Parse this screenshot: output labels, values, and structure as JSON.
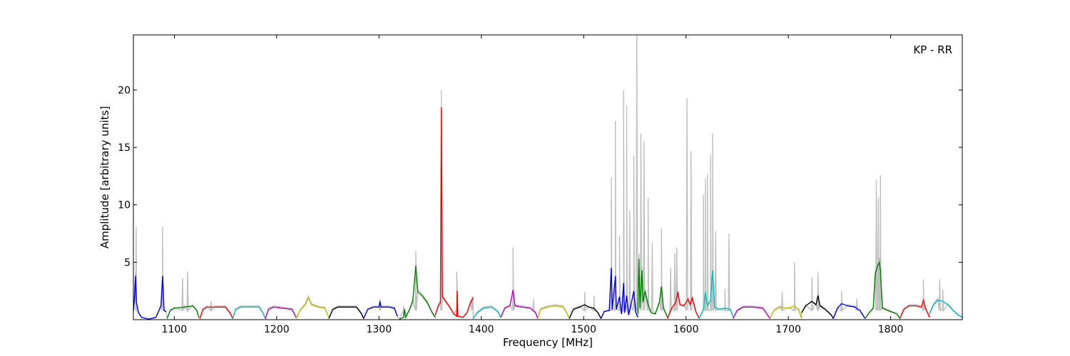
{
  "chart_data": {
    "type": "line",
    "xlabel": "Frequency [MHz]",
    "ylabel": "Amplitude [arbitrary units]",
    "annotation": "KP - RR",
    "xlim": [
      1060,
      1870
    ],
    "ylim": [
      0,
      24.8
    ],
    "xticks": [
      1100,
      1200,
      1300,
      1400,
      1500,
      1600,
      1700,
      1800
    ],
    "yticks": [
      5,
      10,
      15,
      20
    ],
    "grid": false,
    "raw_spikes": [
      [
        1062.7,
        8.1
      ],
      [
        1088.5,
        8.1
      ],
      [
        1108,
        3.6
      ],
      [
        1113,
        4.2
      ],
      [
        1136,
        1.6
      ],
      [
        1301,
        1.8
      ],
      [
        1324,
        1.2
      ],
      [
        1336,
        6.0
      ],
      [
        1361,
        19.5
      ],
      [
        1376,
        4.2
      ],
      [
        1391,
        2.0
      ],
      [
        1431,
        6.3
      ],
      [
        1451,
        1.8
      ],
      [
        1501,
        2.4
      ],
      [
        1510,
        2.1
      ],
      [
        1527,
        12.4
      ],
      [
        1531,
        17.3
      ],
      [
        1535,
        7.3
      ],
      [
        1539,
        20.0
      ],
      [
        1542,
        18.6
      ],
      [
        1545,
        9.5
      ],
      [
        1549,
        14.3
      ],
      [
        1552,
        24.8
      ],
      [
        1556,
        16.2
      ],
      [
        1559,
        15.5
      ],
      [
        1563,
        10.6
      ],
      [
        1567,
        6.7
      ],
      [
        1576,
        8.0
      ],
      [
        1585,
        4.5
      ],
      [
        1589,
        5.8
      ],
      [
        1591,
        6.3
      ],
      [
        1601,
        19.3
      ],
      [
        1605,
        14.7
      ],
      [
        1617,
        10.9
      ],
      [
        1619,
        12.3
      ],
      [
        1621,
        12.7
      ],
      [
        1624,
        14.4
      ],
      [
        1626,
        16.2
      ],
      [
        1629,
        7.7
      ],
      [
        1638,
        2.7
      ],
      [
        1642,
        7.5
      ],
      [
        1694,
        2.4
      ],
      [
        1706,
        5.0
      ],
      [
        1723,
        3.7
      ],
      [
        1729,
        4.1
      ],
      [
        1752,
        2.5
      ],
      [
        1767,
        1.8
      ],
      [
        1786,
        12.2
      ],
      [
        1788,
        10.6
      ],
      [
        1790,
        12.6
      ],
      [
        1832,
        3.5
      ],
      [
        1848,
        3.5
      ],
      [
        1851,
        2.6
      ]
    ],
    "series": [
      {
        "color": "#0000ff",
        "points": [
          [
            1060,
            0.7
          ],
          [
            1061,
            1.8
          ],
          [
            1062,
            3.8
          ],
          [
            1063,
            1.5
          ],
          [
            1065,
            0.6
          ],
          [
            1068,
            0.2
          ],
          [
            1075,
            0.05
          ],
          [
            1082,
            0.2
          ],
          [
            1087,
            1.2
          ],
          [
            1088.5,
            3.8
          ],
          [
            1090,
            0.8
          ],
          [
            1092,
            0.7
          ]
        ]
      },
      {
        "color": "#008000",
        "points": [
          [
            1093,
            0.1
          ],
          [
            1096,
            0.8
          ],
          [
            1100,
            1.0
          ],
          [
            1110,
            1.1
          ],
          [
            1118,
            1.2
          ],
          [
            1122,
            0.8
          ],
          [
            1124,
            0.2
          ]
        ]
      },
      {
        "color": "#ff0000",
        "points": [
          [
            1125,
            0.1
          ],
          [
            1128,
            0.9
          ],
          [
            1132,
            1.1
          ],
          [
            1140,
            1.1
          ],
          [
            1150,
            1.1
          ],
          [
            1155,
            0.5
          ],
          [
            1157,
            0.1
          ]
        ]
      },
      {
        "color": "#00bfbf",
        "points": [
          [
            1157,
            0.1
          ],
          [
            1160,
            0.9
          ],
          [
            1165,
            1.1
          ],
          [
            1175,
            1.1
          ],
          [
            1183,
            1.1
          ],
          [
            1187,
            0.5
          ],
          [
            1189,
            0.1
          ]
        ]
      },
      {
        "color": "#bf00bf",
        "points": [
          [
            1189,
            0.1
          ],
          [
            1192,
            0.9
          ],
          [
            1197,
            1.1
          ],
          [
            1206,
            1.0
          ],
          [
            1215,
            0.9
          ],
          [
            1219,
            0.2
          ]
        ]
      },
      {
        "color": "#bfbf00",
        "points": [
          [
            1219,
            0.1
          ],
          [
            1223,
            0.8
          ],
          [
            1228,
            1.3
          ],
          [
            1231,
            1.9
          ],
          [
            1234,
            1.3
          ],
          [
            1240,
            1.1
          ],
          [
            1247,
            1.0
          ],
          [
            1251,
            0.2
          ]
        ]
      },
      {
        "color": "#000000",
        "points": [
          [
            1251,
            0.1
          ],
          [
            1255,
            0.9
          ],
          [
            1260,
            1.1
          ],
          [
            1270,
            1.1
          ],
          [
            1278,
            1.1
          ],
          [
            1283,
            0.5
          ],
          [
            1285,
            0.1
          ]
        ]
      },
      {
        "color": "#0000ff",
        "points": [
          [
            1285,
            0.1
          ],
          [
            1289,
            0.9
          ],
          [
            1295,
            1.1
          ],
          [
            1300,
            1.1
          ],
          [
            1301,
            1.6
          ],
          [
            1302,
            1.1
          ],
          [
            1310,
            1.1
          ],
          [
            1315,
            1.0
          ],
          [
            1318,
            0.3
          ]
        ]
      },
      {
        "color": "#008000",
        "points": [
          [
            1320,
            0.05
          ],
          [
            1324,
            0.2
          ],
          [
            1325,
            0.9
          ],
          [
            1326,
            0.2
          ],
          [
            1330,
            0.9
          ],
          [
            1333,
            1.6
          ],
          [
            1336,
            4.7
          ],
          [
            1338,
            2.4
          ],
          [
            1342,
            2.1
          ],
          [
            1347,
            1.5
          ],
          [
            1352,
            0.6
          ],
          [
            1355,
            0.2
          ]
        ]
      },
      {
        "color": "#ff0000",
        "points": [
          [
            1355,
            0.4
          ],
          [
            1358,
            1.2
          ],
          [
            1360,
            1.5
          ],
          [
            1361,
            18.5
          ],
          [
            1362,
            2.0
          ],
          [
            1365,
            1.6
          ],
          [
            1369,
            1.1
          ],
          [
            1373,
            0.5
          ],
          [
            1376,
            0.3
          ],
          [
            1376.5,
            2.5
          ],
          [
            1377,
            0.3
          ],
          [
            1382,
            0.2
          ],
          [
            1386,
            0.6
          ],
          [
            1390,
            1.6
          ],
          [
            1392,
            1.9
          ]
        ]
      },
      {
        "color": "#00bfbf",
        "points": [
          [
            1392,
            0.1
          ],
          [
            1396,
            0.6
          ],
          [
            1402,
            1.0
          ],
          [
            1410,
            1.1
          ],
          [
            1416,
            0.7
          ],
          [
            1419,
            0.2
          ]
        ]
      },
      {
        "color": "#bf00bf",
        "points": [
          [
            1419,
            0.2
          ],
          [
            1423,
            1.0
          ],
          [
            1428,
            1.2
          ],
          [
            1431,
            2.6
          ],
          [
            1433,
            1.2
          ],
          [
            1440,
            1.1
          ],
          [
            1448,
            1.0
          ],
          [
            1453,
            0.6
          ],
          [
            1455,
            0.1
          ]
        ]
      },
      {
        "color": "#bfbf00",
        "points": [
          [
            1455,
            0.1
          ],
          [
            1458,
            0.9
          ],
          [
            1465,
            1.1
          ],
          [
            1472,
            1.2
          ],
          [
            1480,
            1.1
          ],
          [
            1484,
            0.5
          ],
          [
            1486,
            0.1
          ]
        ]
      },
      {
        "color": "#000000",
        "points": [
          [
            1486,
            0.1
          ],
          [
            1490,
            0.9
          ],
          [
            1496,
            1.1
          ],
          [
            1501,
            1.3
          ],
          [
            1505,
            1.1
          ],
          [
            1510,
            1.0
          ],
          [
            1514,
            0.6
          ],
          [
            1517,
            0.1
          ]
        ]
      },
      {
        "color": "#0000ff",
        "points": [
          [
            1517,
            0.1
          ],
          [
            1520,
            0.7
          ],
          [
            1525,
            0.8
          ],
          [
            1527,
            4.5
          ],
          [
            1528,
            0.9
          ],
          [
            1531,
            3.8
          ],
          [
            1532,
            0.9
          ],
          [
            1535,
            2.0
          ],
          [
            1537,
            0.5
          ],
          [
            1539,
            3.2
          ],
          [
            1540,
            0.6
          ],
          [
            1542,
            2.1
          ],
          [
            1544,
            0.4
          ],
          [
            1546,
            1.2
          ],
          [
            1549,
            2.5
          ],
          [
            1551,
            0.6
          ],
          [
            1553,
            0.2
          ]
        ]
      },
      {
        "color": "#008000",
        "points": [
          [
            1553,
            0.5
          ],
          [
            1554,
            5.3
          ],
          [
            1555,
            1.0
          ],
          [
            1557,
            4.3
          ],
          [
            1558,
            1.5
          ],
          [
            1560,
            2.5
          ],
          [
            1563,
            1.3
          ],
          [
            1566,
            0.6
          ],
          [
            1570,
            0.5
          ],
          [
            1574,
            1.5
          ],
          [
            1576,
            2.9
          ],
          [
            1578,
            1.0
          ],
          [
            1582,
            0.2
          ]
        ]
      },
      {
        "color": "#ff0000",
        "points": [
          [
            1582,
            0.1
          ],
          [
            1586,
            1.0
          ],
          [
            1590,
            1.5
          ],
          [
            1592,
            2.4
          ],
          [
            1594,
            1.3
          ],
          [
            1598,
            1.2
          ],
          [
            1602,
            1.8
          ],
          [
            1604,
            1.3
          ],
          [
            1606,
            1.9
          ],
          [
            1610,
            0.6
          ],
          [
            1613,
            0.1
          ]
        ]
      },
      {
        "color": "#00bfbf",
        "points": [
          [
            1613,
            0.1
          ],
          [
            1617,
            0.9
          ],
          [
            1619,
            2.4
          ],
          [
            1621,
            1.2
          ],
          [
            1624,
            1.7
          ],
          [
            1626,
            4.3
          ],
          [
            1628,
            1.1
          ],
          [
            1632,
            0.9
          ],
          [
            1638,
            1.0
          ],
          [
            1643,
            0.9
          ],
          [
            1646,
            0.3
          ]
        ]
      },
      {
        "color": "#bf00bf",
        "points": [
          [
            1646,
            0.1
          ],
          [
            1650,
            0.8
          ],
          [
            1656,
            1.1
          ],
          [
            1665,
            1.1
          ],
          [
            1675,
            1.0
          ],
          [
            1679,
            0.5
          ],
          [
            1682,
            0.1
          ]
        ]
      },
      {
        "color": "#bfbf00",
        "points": [
          [
            1682,
            0.1
          ],
          [
            1686,
            0.8
          ],
          [
            1692,
            1.1
          ],
          [
            1700,
            1.0
          ],
          [
            1706,
            1.2
          ],
          [
            1710,
            0.9
          ],
          [
            1713,
            0.1
          ]
        ]
      },
      {
        "color": "#000000",
        "points": [
          [
            1713,
            0.6
          ],
          [
            1717,
            1.2
          ],
          [
            1723,
            1.6
          ],
          [
            1727,
            1.3
          ],
          [
            1729,
            2.1
          ],
          [
            1731,
            1.2
          ],
          [
            1736,
            0.9
          ],
          [
            1742,
            0.4
          ],
          [
            1744,
            0.1
          ]
        ]
      },
      {
        "color": "#0000ff",
        "points": [
          [
            1744,
            0.1
          ],
          [
            1748,
            1.0
          ],
          [
            1752,
            1.4
          ],
          [
            1758,
            1.2
          ],
          [
            1765,
            1.1
          ],
          [
            1770,
            0.8
          ],
          [
            1775,
            0.1
          ]
        ]
      },
      {
        "color": "#008000",
        "points": [
          [
            1775,
            0.1
          ],
          [
            1779,
            0.6
          ],
          [
            1783,
            1.0
          ],
          [
            1785,
            4.0
          ],
          [
            1787,
            4.6
          ],
          [
            1789,
            5.0
          ],
          [
            1790,
            4.3
          ],
          [
            1792,
            1.0
          ],
          [
            1800,
            0.7
          ],
          [
            1806,
            0.5
          ],
          [
            1809,
            0.1
          ]
        ]
      },
      {
        "color": "#ff0000",
        "points": [
          [
            1809,
            0.1
          ],
          [
            1813,
            0.9
          ],
          [
            1818,
            1.2
          ],
          [
            1825,
            1.2
          ],
          [
            1830,
            1.1
          ],
          [
            1832,
            1.7
          ],
          [
            1834,
            1.0
          ],
          [
            1838,
            0.2
          ]
        ]
      },
      {
        "color": "#00bfbf",
        "points": [
          [
            1838,
            0.5
          ],
          [
            1842,
            1.3
          ],
          [
            1846,
            1.7
          ],
          [
            1851,
            1.6
          ],
          [
            1856,
            1.3
          ],
          [
            1861,
            0.8
          ],
          [
            1866,
            0.4
          ],
          [
            1870,
            0.2
          ]
        ]
      }
    ]
  }
}
